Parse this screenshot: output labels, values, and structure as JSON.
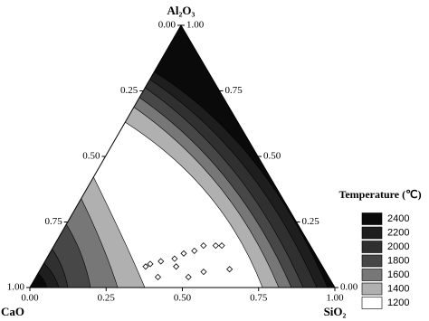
{
  "chart_data": {
    "type": "ternary",
    "axes": {
      "top": "Al₂O₃",
      "left": "CaO",
      "right": "SiO₂"
    },
    "bottom_ticks": [
      {
        "value": 0,
        "label": "0.00"
      },
      {
        "value": 0.25,
        "label": "0.25"
      },
      {
        "value": 0.5,
        "label": "0.50"
      },
      {
        "value": 0.75,
        "label": "0.75"
      },
      {
        "value": 1,
        "label": "1.00"
      }
    ],
    "left_ticks": [
      {
        "value": 0,
        "label": "0.00"
      },
      {
        "value": 0.25,
        "label": "0.25"
      },
      {
        "value": 0.5,
        "label": "0.50"
      },
      {
        "value": 0.75,
        "label": "0.75"
      },
      {
        "value": 1,
        "label": "1.00"
      }
    ],
    "right_ticks": [
      {
        "value": 0,
        "label": "0.00"
      },
      {
        "value": 0.25,
        "label": "0.25"
      },
      {
        "value": 0.5,
        "label": "0.50"
      },
      {
        "value": 0.75,
        "label": "0.75"
      },
      {
        "value": 1,
        "label": "1.00"
      }
    ],
    "legend": {
      "title": "Temperature (℃)",
      "levels": [
        2400,
        2200,
        2000,
        1800,
        1600,
        1400,
        1200
      ],
      "colors": [
        "#0a0a0a",
        "#1e1e1e",
        "#303030",
        "#474747",
        "#777777",
        "#b0b0b0",
        "#ffffff"
      ]
    },
    "points": {
      "SiO2": [
        0.34,
        0.35,
        0.38,
        0.42,
        0.44,
        0.47,
        0.49,
        0.53,
        0.55,
        0.4,
        0.44,
        0.5,
        0.54,
        0.62
      ],
      "Al2O3": [
        0.08,
        0.09,
        0.1,
        0.11,
        0.13,
        0.14,
        0.16,
        0.16,
        0.16,
        0.04,
        0.08,
        0.04,
        0.06,
        0.07
      ],
      "color": "#000000"
    }
  }
}
